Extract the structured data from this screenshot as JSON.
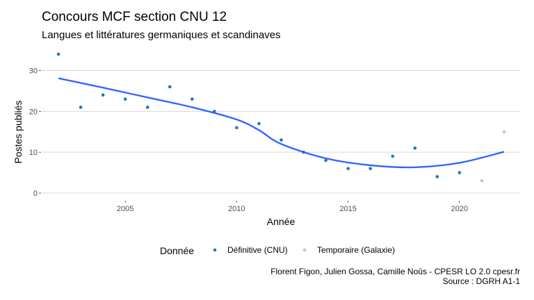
{
  "chart_data": {
    "type": "scatter",
    "title": "Concours MCF section CNU 12",
    "subtitle": "Langues et littératures germaniques et scandinaves",
    "xlabel": "Année",
    "ylabel": "Postes publiés",
    "xlim": [
      2001.25,
      2022.75
    ],
    "ylim": [
      -1.7,
      35.7
    ],
    "x_ticks": [
      2005,
      2010,
      2015,
      2020
    ],
    "y_ticks": [
      0,
      10,
      20,
      30
    ],
    "grid": true,
    "legend": {
      "title": "Donnée",
      "position": "bottom",
      "entries": [
        {
          "label": "Définitive (CNU)",
          "color": "#1f78b4"
        },
        {
          "label": "Temporaire (Galaxie)",
          "color": "#a6cee3"
        }
      ]
    },
    "series": [
      {
        "name": "Définitive (CNU)",
        "color": "#1f78b4",
        "points": [
          [
            2002,
            34
          ],
          [
            2003,
            21
          ],
          [
            2004,
            24
          ],
          [
            2005,
            23
          ],
          [
            2006,
            21
          ],
          [
            2007,
            26
          ],
          [
            2008,
            23
          ],
          [
            2009,
            20
          ],
          [
            2010,
            16
          ],
          [
            2011,
            17
          ],
          [
            2012,
            13
          ],
          [
            2013,
            10
          ],
          [
            2014,
            8
          ],
          [
            2015,
            6
          ],
          [
            2016,
            6
          ],
          [
            2017,
            9
          ],
          [
            2018,
            11
          ],
          [
            2019,
            4
          ],
          [
            2020,
            5
          ]
        ]
      },
      {
        "name": "Temporaire (Galaxie)",
        "color": "#a6cee3",
        "points": [
          [
            2021,
            3
          ],
          [
            2022,
            15
          ]
        ]
      }
    ],
    "trend": {
      "color": "#3366ff",
      "points": [
        [
          2002,
          28.1
        ],
        [
          2004,
          25.8
        ],
        [
          2006,
          23.4
        ],
        [
          2008,
          21.0
        ],
        [
          2010,
          18.0
        ],
        [
          2011,
          15.4
        ],
        [
          2012,
          12.0
        ],
        [
          2014,
          8.5
        ],
        [
          2016,
          6.8
        ],
        [
          2018,
          6.3
        ],
        [
          2020,
          7.4
        ],
        [
          2022,
          10.1
        ]
      ]
    }
  },
  "caption": {
    "line1": "Florent Figon, Julien Gossa, Camille Noûs - CPESR LO 2.0 cpesr.fr",
    "line2": "Source : DGRH A1-1"
  }
}
